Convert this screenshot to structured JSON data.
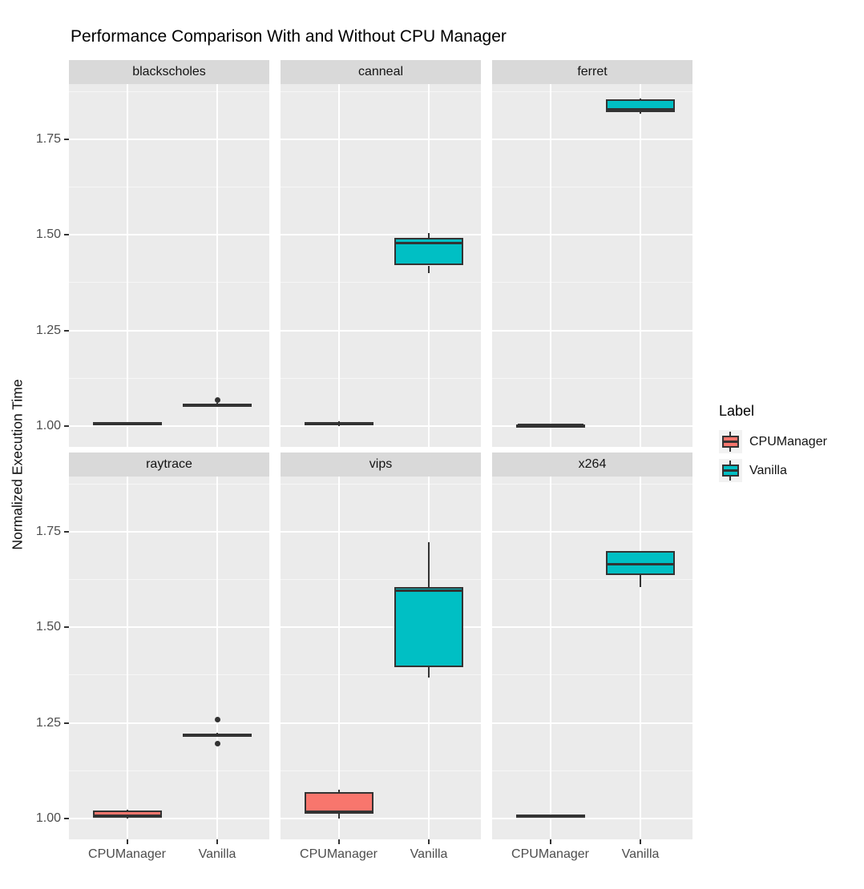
{
  "chart_data": {
    "type": "boxplot",
    "title": "Performance Comparison With and Without CPU Manager",
    "ylabel": "Normalized Execution Time",
    "xlabel": "",
    "categories": [
      "CPUManager",
      "Vanilla"
    ],
    "series_colors": {
      "CPUManager": "#F8766D",
      "Vanilla": "#00BFC4"
    },
    "ylim": [
      0.945,
      1.895
    ],
    "y_major": [
      1.0,
      1.25,
      1.5,
      1.75
    ],
    "y_major_labels": [
      "1.00",
      "1.25",
      "1.50",
      "1.75"
    ],
    "y_minor": [
      1.125,
      1.375,
      1.625,
      1.875
    ],
    "grid": "on",
    "panel_background": "#EBEBEB",
    "strip_background": "#D9D9D9",
    "facets": [
      {
        "name": "blackscholes",
        "boxes": [
          {
            "category": "CPUManager",
            "lo": 1.002,
            "q1": 1.003,
            "med": 1.006,
            "q3": 1.009,
            "hi": 1.01,
            "outliers": []
          },
          {
            "category": "Vanilla",
            "lo": 1.05,
            "q1": 1.052,
            "med": 1.055,
            "q3": 1.058,
            "hi": 1.06,
            "outliers": [
              1.068
            ]
          }
        ]
      },
      {
        "name": "canneal",
        "boxes": [
          {
            "category": "CPUManager",
            "lo": 1.0,
            "q1": 1.002,
            "med": 1.006,
            "q3": 1.01,
            "hi": 1.012,
            "outliers": []
          },
          {
            "category": "Vanilla",
            "lo": 1.4,
            "q1": 1.42,
            "med": 1.478,
            "q3": 1.492,
            "hi": 1.505,
            "outliers": []
          }
        ]
      },
      {
        "name": "ferret",
        "boxes": [
          {
            "category": "CPUManager",
            "lo": 0.999,
            "q1": 1.0,
            "med": 1.002,
            "q3": 1.004,
            "hi": 1.005,
            "outliers": []
          },
          {
            "category": "Vanilla",
            "lo": 1.818,
            "q1": 1.822,
            "med": 1.828,
            "q3": 1.856,
            "hi": 1.858,
            "outliers": []
          }
        ]
      },
      {
        "name": "raytrace",
        "boxes": [
          {
            "category": "CPUManager",
            "lo": 1.0,
            "q1": 1.002,
            "med": 1.007,
            "q3": 1.021,
            "hi": 1.023,
            "outliers": []
          },
          {
            "category": "Vanilla",
            "lo": 1.215,
            "q1": 1.216,
            "med": 1.218,
            "q3": 1.221,
            "hi": 1.223,
            "outliers": [
              1.258,
              1.196
            ]
          }
        ]
      },
      {
        "name": "vips",
        "boxes": [
          {
            "category": "CPUManager",
            "lo": 1.0,
            "q1": 1.012,
            "med": 1.017,
            "q3": 1.068,
            "hi": 1.075,
            "outliers": []
          },
          {
            "category": "Vanilla",
            "lo": 1.368,
            "q1": 1.396,
            "med": 1.596,
            "q3": 1.606,
            "hi": 1.724,
            "outliers": []
          }
        ]
      },
      {
        "name": "x264",
        "boxes": [
          {
            "category": "CPUManager",
            "lo": 1.003,
            "q1": 1.004,
            "med": 1.006,
            "q3": 1.009,
            "hi": 1.01,
            "outliers": []
          },
          {
            "category": "Vanilla",
            "lo": 1.606,
            "q1": 1.637,
            "med": 1.666,
            "q3": 1.7,
            "hi": 1.701,
            "outliers": []
          }
        ]
      }
    ],
    "legend": {
      "title": "Label",
      "position": "right",
      "items": [
        {
          "label": "CPUManager",
          "color": "#F8766D"
        },
        {
          "label": "Vanilla",
          "color": "#00BFC4"
        }
      ]
    }
  }
}
